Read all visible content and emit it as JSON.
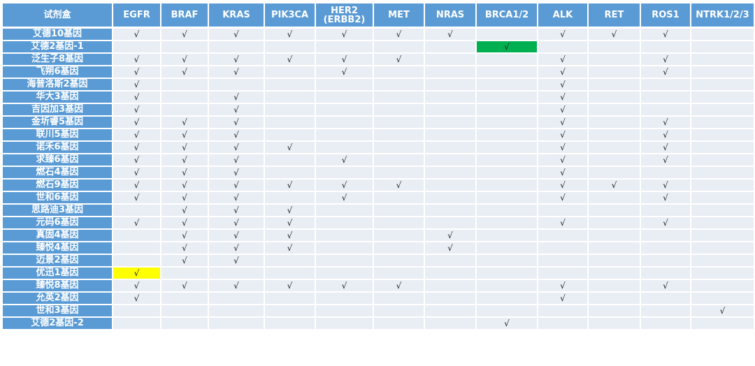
{
  "header": {
    "kit_label": "试剂盒",
    "genes": [
      "EGFR",
      "BRAF",
      "KRAS",
      "PIK3CA",
      "HER2\n(ERBB2)",
      "MET",
      "NRAS",
      "BRCA1/2",
      "ALK",
      "RET",
      "ROS1",
      "NTRK1/2/3"
    ]
  },
  "colors": {
    "header_bg": "#5B9BD5",
    "cell_bg": "#E9EDF4",
    "highlight_green": "#00B050",
    "highlight_yellow": "#FFFF00"
  },
  "rows": [
    {
      "kit": "艾德10基因",
      "cells": [
        "√",
        "√",
        "√",
        "√",
        "√",
        "√",
        "√",
        "",
        "√",
        "√",
        "√",
        ""
      ]
    },
    {
      "kit": "艾德2基因-1",
      "cells": [
        "",
        "",
        "",
        "",
        "",
        "",
        "",
        "√",
        "",
        "",
        "",
        ""
      ],
      "highlight": {
        "col": 7,
        "color": "#00B050"
      }
    },
    {
      "kit": "泛生子8基因",
      "cells": [
        "√",
        "√",
        "√",
        "√",
        "√",
        "√",
        "",
        "",
        "√",
        "",
        "√",
        ""
      ]
    },
    {
      "kit": "飞朔6基因",
      "cells": [
        "√",
        "√",
        "√",
        "",
        "√",
        "",
        "",
        "",
        "√",
        "",
        "√",
        ""
      ]
    },
    {
      "kit": "海普洛斯2基因",
      "cells": [
        "√",
        "",
        "",
        "",
        "",
        "",
        "",
        "",
        "√",
        "",
        "",
        ""
      ]
    },
    {
      "kit": "华大3基因",
      "cells": [
        "√",
        "",
        "√",
        "",
        "",
        "",
        "",
        "",
        "√",
        "",
        "",
        ""
      ]
    },
    {
      "kit": "吉因加3基因",
      "cells": [
        "√",
        "",
        "√",
        "",
        "",
        "",
        "",
        "",
        "√",
        "",
        "",
        ""
      ]
    },
    {
      "kit": "金圻睿5基因",
      "cells": [
        "√",
        "√",
        "√",
        "",
        "",
        "",
        "",
        "",
        "√",
        "",
        "√",
        ""
      ]
    },
    {
      "kit": "联川5基因",
      "cells": [
        "√",
        "√",
        "√",
        "",
        "",
        "",
        "",
        "",
        "√",
        "",
        "√",
        ""
      ]
    },
    {
      "kit": "诺禾6基因",
      "cells": [
        "√",
        "√",
        "√",
        "√",
        "",
        "",
        "",
        "",
        "√",
        "",
        "√",
        ""
      ]
    },
    {
      "kit": "求臻6基因",
      "cells": [
        "√",
        "√",
        "√",
        "",
        "√",
        "",
        "",
        "",
        "√",
        "",
        "√",
        ""
      ]
    },
    {
      "kit": "燃石4基因",
      "cells": [
        "√",
        "√",
        "√",
        "",
        "",
        "",
        "",
        "",
        "√",
        "",
        "",
        ""
      ]
    },
    {
      "kit": "燃石9基因",
      "cells": [
        "√",
        "√",
        "√",
        "√",
        "√",
        "√",
        "",
        "",
        "√",
        "√",
        "√",
        ""
      ]
    },
    {
      "kit": "世和6基因",
      "cells": [
        "√",
        "√",
        "√",
        "",
        "√",
        "",
        "",
        "",
        "√",
        "",
        "√",
        ""
      ]
    },
    {
      "kit": "思路迪3基因",
      "cells": [
        "",
        "√",
        "√",
        "√",
        "",
        "",
        "",
        "",
        "",
        "",
        "",
        ""
      ]
    },
    {
      "kit": "元码6基因",
      "cells": [
        "√",
        "√",
        "√",
        "√",
        "",
        "",
        "",
        "",
        "√",
        "",
        "√",
        ""
      ]
    },
    {
      "kit": "真固4基因",
      "cells": [
        "",
        "√",
        "√",
        "√",
        "",
        "",
        "√",
        "",
        "",
        "",
        "",
        ""
      ]
    },
    {
      "kit": "臻悦4基因",
      "cells": [
        "",
        "√",
        "√",
        "√",
        "",
        "",
        "√",
        "",
        "",
        "",
        "",
        ""
      ]
    },
    {
      "kit": "迈景2基因",
      "cells": [
        "",
        "√",
        "√",
        "",
        "",
        "",
        "",
        "",
        "",
        "",
        "",
        ""
      ]
    },
    {
      "kit": "优迅1基因",
      "cells": [
        "√",
        "",
        "",
        "",
        "",
        "",
        "",
        "",
        "",
        "",
        "",
        ""
      ],
      "highlight": {
        "col": 0,
        "color": "#FFFF00"
      }
    },
    {
      "kit": "臻悦8基因",
      "cells": [
        "√",
        "√",
        "√",
        "√",
        "√",
        "√",
        "",
        "",
        "√",
        "",
        "√",
        ""
      ]
    },
    {
      "kit": "允英2基因",
      "cells": [
        "√",
        "",
        "",
        "",
        "",
        "",
        "",
        "",
        "√",
        "",
        "",
        ""
      ]
    },
    {
      "kit": "世和3基因",
      "cells": [
        "",
        "",
        "",
        "",
        "",
        "",
        "",
        "",
        "",
        "",
        "",
        "√"
      ]
    },
    {
      "kit": "艾德2基因-2",
      "cells": [
        "",
        "",
        "",
        "",
        "",
        "",
        "",
        "√",
        "",
        "",
        "",
        ""
      ]
    }
  ]
}
